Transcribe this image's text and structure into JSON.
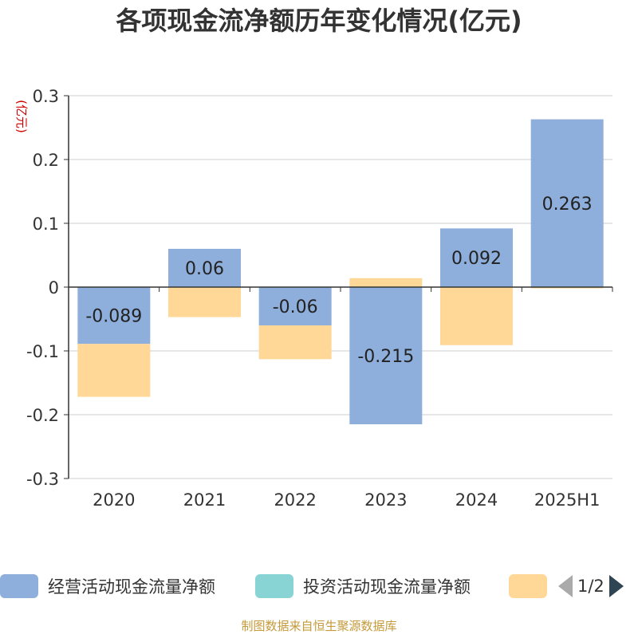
{
  "title": "各项现金流净额历年变化情况(亿元)",
  "source": "制图数据来自恒生聚源数据库",
  "legend": {
    "items": [
      {
        "label": "经营活动现金流量净额",
        "color": "#8eaedb"
      },
      {
        "label": "投资活动现金流量净额",
        "color": "#88d4d4"
      },
      {
        "label": "",
        "color": "#ffd897"
      }
    ],
    "page": "1/2"
  },
  "chart_data": {
    "type": "bar",
    "stacked": true,
    "categories": [
      "2020",
      "2021",
      "2022",
      "2023",
      "2024",
      "2025H1"
    ],
    "ylabel": "(亿元)",
    "ylim": [
      -0.3,
      0.3
    ],
    "yticks": [
      0.3,
      0.2,
      0.1,
      0,
      -0.1,
      -0.2,
      -0.3
    ],
    "ytick_labels": [
      "0.3",
      "0.2",
      "0.1",
      "0",
      "-0.1",
      "-0.2",
      "-0.3"
    ],
    "grid": true,
    "series": [
      {
        "name": "经营活动现金流量净额",
        "color": "#8eaedb",
        "values": [
          -0.089,
          0.06,
          -0.06,
          -0.215,
          0.092,
          0.263
        ],
        "labels": [
          "-0.089",
          "0.06",
          "-0.06",
          "-0.215",
          "0.092",
          "0.263"
        ]
      },
      {
        "name": "",
        "color": "#ffd897",
        "values": [
          -0.083,
          -0.047,
          -0.053,
          0.014,
          -0.091,
          -0.002
        ]
      }
    ]
  }
}
